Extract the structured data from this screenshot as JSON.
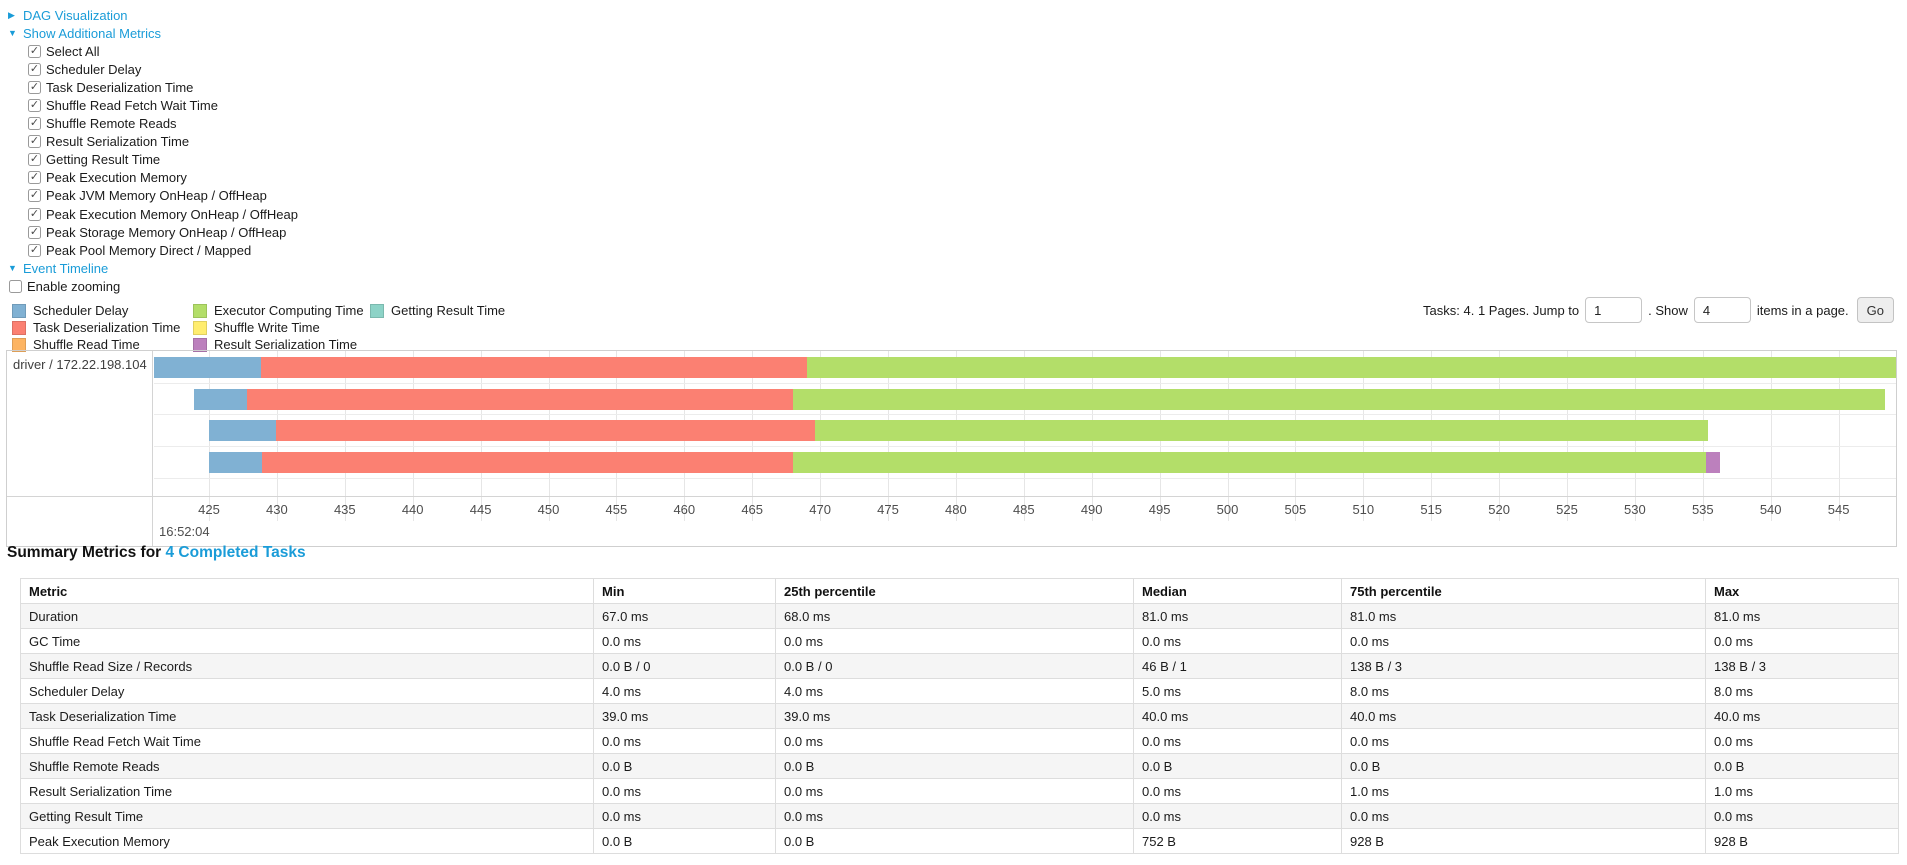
{
  "controls": {
    "dag_label": "DAG Visualization",
    "metrics_label": "Show Additional Metrics",
    "checkboxes": [
      "Select All",
      "Scheduler Delay",
      "Task Deserialization Time",
      "Shuffle Read Fetch Wait Time",
      "Shuffle Remote Reads",
      "Result Serialization Time",
      "Getting Result Time",
      "Peak Execution Memory",
      "Peak JVM Memory OnHeap / OffHeap",
      "Peak Execution Memory OnHeap / OffHeap",
      "Peak Storage Memory OnHeap / OffHeap",
      "Peak Pool Memory Direct / Mapped"
    ],
    "checkboxes_checked": true,
    "event_timeline_label": "Event Timeline",
    "enable_zooming_label": "Enable zooming",
    "enable_zooming_checked": false
  },
  "pagination": {
    "tasks_text": "Tasks: 4. 1 Pages. Jump to",
    "jump_value": "1",
    "show_text": ". Show",
    "show_value": "4",
    "items_text": "items in a page.",
    "go_label": "Go"
  },
  "legend_columns": [
    [
      {
        "label": "Scheduler Delay",
        "color": "#80B1D3"
      },
      {
        "label": "Task Deserialization Time",
        "color": "#FB8072"
      },
      {
        "label": "Shuffle Read Time",
        "color": "#FDB462"
      }
    ],
    [
      {
        "label": "Executor Computing Time",
        "color": "#B3DE69"
      },
      {
        "label": "Shuffle Write Time",
        "color": "#FFED6F"
      },
      {
        "label": "Result Serialization Time",
        "color": "#BC80BD"
      }
    ],
    [
      {
        "label": "Getting Result Time",
        "color": "#8DD3C7"
      }
    ]
  ],
  "chart_data": {
    "type": "timeline",
    "group_label": "driver / 172.22.198.104",
    "axis": {
      "tick_start": 425,
      "tick_end": 550,
      "tick_step": 5,
      "unit": "ms within second",
      "major_label": "16:52:04"
    },
    "colors": {
      "scheduler_delay": "#80B1D3",
      "task_deserialization": "#FB8072",
      "shuffle_read": "#FDB462",
      "executor_computing": "#B3DE69",
      "shuffle_write": "#FFED6F",
      "result_serialization": "#BC80BD",
      "getting_result": "#8DD3C7"
    },
    "tasks": [
      {
        "segments": [
          {
            "type": "scheduler_delay",
            "start": 420.9,
            "end": 428.8
          },
          {
            "type": "task_deserialization",
            "start": 428.8,
            "end": 469.0
          },
          {
            "type": "executor_computing",
            "start": 469.0,
            "end": 549.8
          }
        ]
      },
      {
        "segments": [
          {
            "type": "scheduler_delay",
            "start": 423.9,
            "end": 427.8
          },
          {
            "type": "task_deserialization",
            "start": 427.8,
            "end": 468.0
          },
          {
            "type": "executor_computing",
            "start": 468.0,
            "end": 548.4
          }
        ]
      },
      {
        "segments": [
          {
            "type": "scheduler_delay",
            "start": 425.0,
            "end": 429.9
          },
          {
            "type": "task_deserialization",
            "start": 429.9,
            "end": 469.6
          },
          {
            "type": "executor_computing",
            "start": 469.6,
            "end": 535.4
          }
        ]
      },
      {
        "segments": [
          {
            "type": "scheduler_delay",
            "start": 425.0,
            "end": 428.9
          },
          {
            "type": "task_deserialization",
            "start": 428.9,
            "end": 468.0
          },
          {
            "type": "executor_computing",
            "start": 468.0,
            "end": 535.2
          },
          {
            "type": "result_serialization",
            "start": 535.2,
            "end": 536.3
          }
        ]
      }
    ]
  },
  "summary": {
    "title_prefix": "Summary Metrics for ",
    "title_link": "4 Completed Tasks",
    "columns": [
      "Metric",
      "Min",
      "25th percentile",
      "Median",
      "75th percentile",
      "Max"
    ],
    "rows": [
      {
        "metric": "Duration",
        "values": [
          "67.0 ms",
          "68.0 ms",
          "81.0 ms",
          "81.0 ms",
          "81.0 ms"
        ]
      },
      {
        "metric": "GC Time",
        "values": [
          "0.0 ms",
          "0.0 ms",
          "0.0 ms",
          "0.0 ms",
          "0.0 ms"
        ]
      },
      {
        "metric": "Shuffle Read Size / Records",
        "values": [
          "0.0 B / 0",
          "0.0 B / 0",
          "46 B / 1",
          "138 B / 3",
          "138 B / 3"
        ]
      },
      {
        "metric": "Scheduler Delay",
        "values": [
          "4.0 ms",
          "4.0 ms",
          "5.0 ms",
          "8.0 ms",
          "8.0 ms"
        ]
      },
      {
        "metric": "Task Deserialization Time",
        "values": [
          "39.0 ms",
          "39.0 ms",
          "40.0 ms",
          "40.0 ms",
          "40.0 ms"
        ]
      },
      {
        "metric": "Shuffle Read Fetch Wait Time",
        "values": [
          "0.0 ms",
          "0.0 ms",
          "0.0 ms",
          "0.0 ms",
          "0.0 ms"
        ]
      },
      {
        "metric": "Shuffle Remote Reads",
        "values": [
          "0.0 B",
          "0.0 B",
          "0.0 B",
          "0.0 B",
          "0.0 B"
        ]
      },
      {
        "metric": "Result Serialization Time",
        "values": [
          "0.0 ms",
          "0.0 ms",
          "0.0 ms",
          "1.0 ms",
          "1.0 ms"
        ]
      },
      {
        "metric": "Getting Result Time",
        "values": [
          "0.0 ms",
          "0.0 ms",
          "0.0 ms",
          "0.0 ms",
          "0.0 ms"
        ]
      },
      {
        "metric": "Peak Execution Memory",
        "values": [
          "0.0 B",
          "0.0 B",
          "752 B",
          "928 B",
          "928 B"
        ]
      }
    ]
  }
}
